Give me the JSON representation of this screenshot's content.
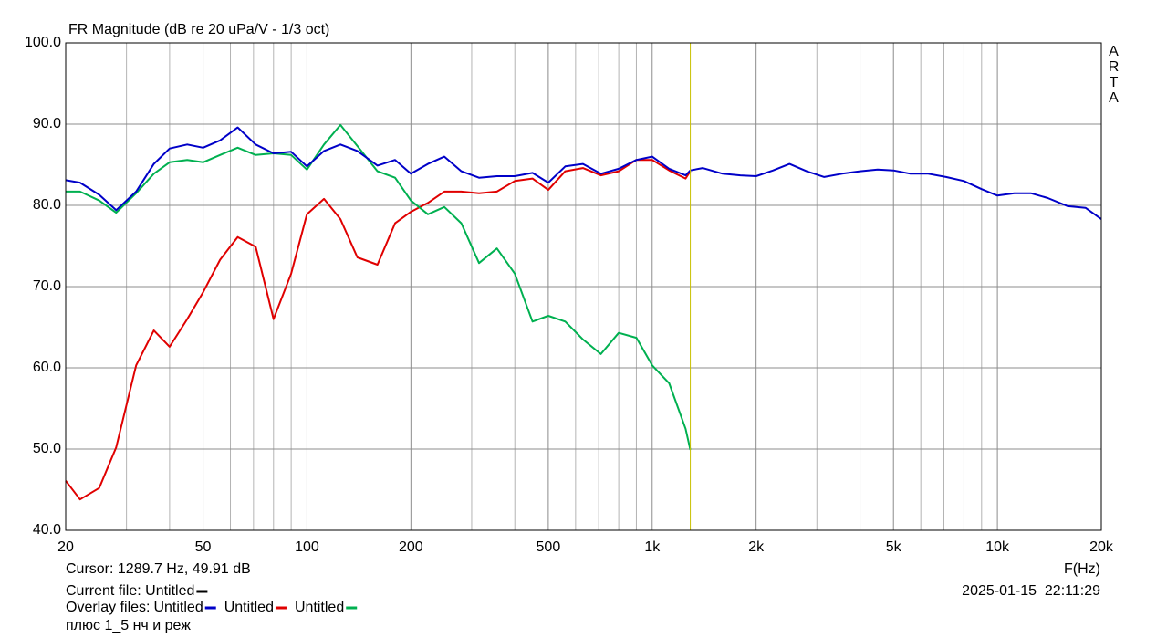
{
  "chart_data": {
    "type": "line",
    "title": "FR Magnitude (dB re 20 uPa/V - 1/3 oct)",
    "x_label": "F(Hz)",
    "watermark": "ARTA",
    "xscale": "log",
    "grid": true,
    "xlim": [
      20,
      20000
    ],
    "ylim": [
      40,
      100
    ],
    "xticks": [
      20,
      50,
      100,
      200,
      500,
      {
        "value": 1000,
        "label": "1k"
      },
      {
        "value": 2000,
        "label": "2k"
      },
      {
        "value": 5000,
        "label": "5k"
      },
      {
        "value": 10000,
        "label": "10k"
      },
      {
        "value": 20000,
        "label": "20k"
      }
    ],
    "xgrid_minor": [
      30,
      40,
      60,
      70,
      80,
      90,
      300,
      400,
      600,
      700,
      800,
      900,
      3000,
      4000,
      6000,
      7000,
      8000,
      9000
    ],
    "yticks": [
      {
        "value": 40,
        "label": "40.0"
      },
      {
        "value": 50,
        "label": "50.0"
      },
      {
        "value": 60,
        "label": "60.0"
      },
      {
        "value": 70,
        "label": "70.0"
      },
      {
        "value": 80,
        "label": "80.0"
      },
      {
        "value": 90,
        "label": "90.0"
      },
      {
        "value": 100,
        "label": "100.0"
      }
    ],
    "cursor": {
      "label": "Cursor: 1289.7 Hz, 49.91 dB",
      "x": 1289.7,
      "color": "#c8c000"
    },
    "current_file": "Current file: Untitled",
    "overlay_label": "Overlay files:",
    "note": "плюс 1_5 нч и реж",
    "timestamp": "2025-01-15  22:11:29",
    "x": [
      20,
      22,
      25,
      28,
      32,
      36,
      40,
      45,
      50,
      56,
      63,
      71,
      80,
      90,
      100,
      112,
      125,
      140,
      160,
      180,
      200,
      224,
      250,
      280,
      315,
      355,
      400,
      450,
      500,
      560,
      630,
      710,
      800,
      900,
      1000,
      1120,
      1250,
      1290,
      1400,
      1600,
      1800,
      2000,
      2240,
      2500,
      2800,
      3150,
      3550,
      4000,
      4500,
      5000,
      5600,
      6300,
      7100,
      8000,
      9000,
      10000,
      11200,
      12500,
      14000,
      16000,
      18000,
      20000
    ],
    "series": [
      {
        "name": "Untitled",
        "color": "#0000c8",
        "values": [
          83.1,
          82.8,
          81.3,
          79.4,
          81.7,
          85.1,
          87.0,
          87.5,
          87.1,
          88.0,
          89.6,
          87.5,
          86.4,
          86.6,
          84.8,
          86.7,
          87.5,
          86.7,
          84.9,
          85.6,
          83.9,
          85.1,
          86.0,
          84.2,
          83.4,
          83.6,
          83.6,
          84.0,
          82.8,
          84.8,
          85.1,
          83.9,
          84.5,
          85.6,
          86.0,
          84.5,
          83.7,
          84.3,
          84.6,
          83.9,
          83.7,
          83.6,
          84.3,
          85.1,
          84.2,
          83.5,
          83.9,
          84.2,
          84.4,
          84.3,
          83.9,
          83.9,
          83.5,
          83.0,
          82.0,
          81.2,
          81.5,
          81.5,
          80.9,
          79.9,
          79.7,
          78.3
        ]
      },
      {
        "name": "Untitled",
        "color": "#e00000",
        "values": [
          46.1,
          43.8,
          45.2,
          50.2,
          60.3,
          64.6,
          62.6,
          66.0,
          69.3,
          73.3,
          76.1,
          74.9,
          66.0,
          71.6,
          78.9,
          80.8,
          78.3,
          73.6,
          72.7,
          77.8,
          79.2,
          80.3,
          81.7,
          81.7,
          81.5,
          81.7,
          83.0,
          83.3,
          81.9,
          84.2,
          84.6,
          83.7,
          84.2,
          85.6,
          85.6,
          84.3,
          83.3,
          84.2,
          null,
          null,
          null,
          null,
          null,
          null,
          null,
          null,
          null,
          null,
          null,
          null,
          null,
          null,
          null,
          null,
          null,
          null,
          null,
          null,
          null,
          null,
          null,
          null
        ]
      },
      {
        "name": "Untitled",
        "color": "#00b050",
        "values": [
          81.7,
          81.7,
          80.6,
          79.1,
          81.5,
          83.9,
          85.3,
          85.6,
          85.3,
          86.2,
          87.1,
          86.2,
          86.4,
          86.2,
          84.4,
          87.5,
          89.9,
          87.3,
          84.2,
          83.4,
          80.6,
          78.9,
          79.8,
          77.8,
          72.9,
          74.7,
          71.6,
          65.7,
          66.4,
          65.7,
          63.5,
          61.7,
          64.3,
          63.7,
          60.3,
          58.1,
          52.5,
          49.9,
          null,
          null,
          null,
          null,
          null,
          null,
          null,
          null,
          null,
          null,
          null,
          null,
          null,
          null,
          null,
          null,
          null,
          null,
          null,
          null,
          null,
          null,
          null,
          null
        ]
      }
    ]
  }
}
